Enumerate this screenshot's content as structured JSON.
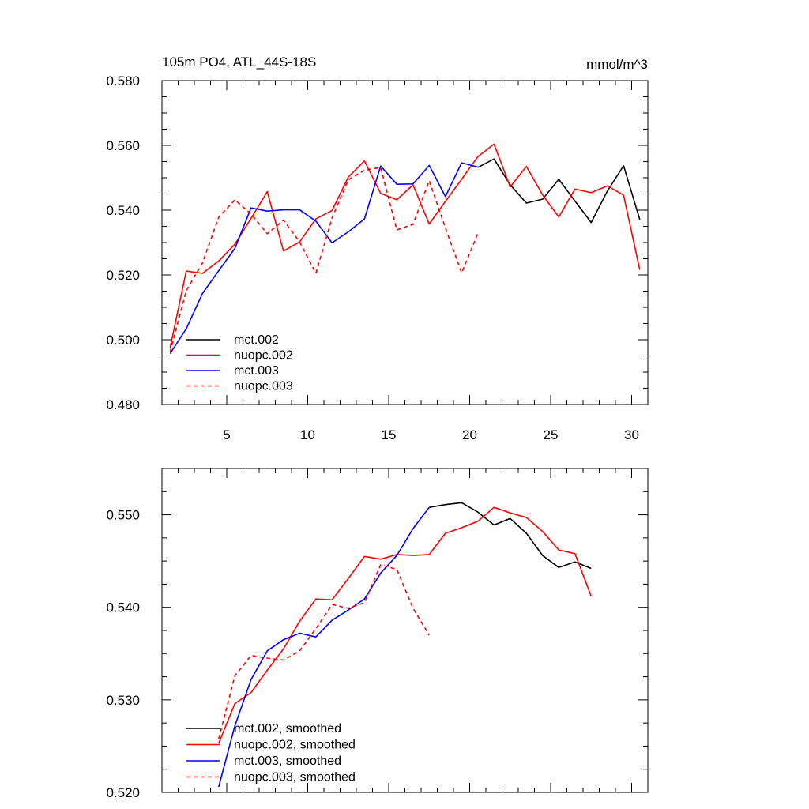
{
  "chart_data": [
    {
      "type": "line",
      "title": "105m PO4, ATL_44S-18S",
      "units": "mmol/m^3",
      "xlim": [
        1,
        31
      ],
      "ylim": [
        0.48,
        0.58
      ],
      "xticks": [
        5,
        10,
        15,
        20,
        25,
        30
      ],
      "xtick_labels": [
        "5",
        "10",
        "15",
        "20",
        "25",
        "30"
      ],
      "yticks": [
        0.48,
        0.5,
        0.52,
        0.54,
        0.56,
        0.58
      ],
      "ytick_labels": [
        "0.480",
        "0.500",
        "0.520",
        "0.540",
        "0.560",
        "0.580"
      ],
      "legend_position": "lower-left",
      "series": [
        {
          "name": "mct.002",
          "color": "#000000",
          "dash": "solid",
          "x": [
            20.5,
            21.5,
            22.5,
            23.5,
            24.5,
            25.5,
            26.5,
            27.5,
            28.5,
            29.5,
            30.5
          ],
          "y": [
            0.5532,
            0.5558,
            0.5478,
            0.5422,
            0.5434,
            0.5495,
            0.5428,
            0.5362,
            0.5459,
            0.5537,
            0.5371
          ]
        },
        {
          "name": "nuopc.002",
          "color": "#ff0000",
          "dash": "solid",
          "x": [
            1.5,
            2.5,
            3.5,
            4.5,
            5.5,
            6.5,
            7.5,
            8.5,
            9.5,
            10.5,
            11.5,
            12.5,
            13.5,
            14.5,
            15.5,
            16.5,
            17.5,
            18.5,
            19.5,
            20.5,
            21.5,
            22.5,
            23.5,
            24.5,
            25.5,
            26.5,
            27.5,
            28.5,
            29.5,
            30.5
          ],
          "y": [
            0.4975,
            0.5212,
            0.5205,
            0.5243,
            0.5295,
            0.5375,
            0.5457,
            0.5274,
            0.5302,
            0.5373,
            0.5399,
            0.5502,
            0.5552,
            0.5452,
            0.5432,
            0.5478,
            0.5357,
            0.5427,
            0.5495,
            0.5565,
            0.5604,
            0.5472,
            0.5535,
            0.5447,
            0.5379,
            0.5465,
            0.5454,
            0.5475,
            0.5446,
            0.5216
          ]
        },
        {
          "name": "mct.003",
          "color": "#0000ff",
          "dash": "solid",
          "x": [
            1.5,
            2.5,
            3.5,
            4.5,
            5.5,
            6.5,
            7.5,
            8.5,
            9.5,
            10.5,
            11.5,
            12.5,
            13.5,
            14.5,
            15.5,
            16.5,
            17.5,
            18.5,
            19.5,
            20.5
          ],
          "y": [
            0.4957,
            0.5034,
            0.5143,
            0.5213,
            0.5282,
            0.5407,
            0.5397,
            0.5401,
            0.5401,
            0.5366,
            0.5299,
            0.5333,
            0.5373,
            0.5536,
            0.548,
            0.5481,
            0.5538,
            0.5442,
            0.5546,
            0.5533
          ]
        },
        {
          "name": "nuopc.003",
          "color": "#ff0000",
          "dash": "dashed",
          "x": [
            1.5,
            2.5,
            3.5,
            4.5,
            5.5,
            6.5,
            7.5,
            8.5,
            9.5,
            10.5,
            11.5,
            12.5,
            13.5,
            14.5,
            15.5,
            16.5,
            17.5,
            18.5,
            19.5,
            20.5
          ],
          "y": [
            0.4962,
            0.5152,
            0.5237,
            0.5378,
            0.5432,
            0.5388,
            0.5327,
            0.5369,
            0.5302,
            0.5205,
            0.5376,
            0.5494,
            0.5523,
            0.5532,
            0.5339,
            0.5356,
            0.5491,
            0.5345,
            0.5206,
            0.5328
          ]
        }
      ]
    },
    {
      "type": "line",
      "xlim": [
        1,
        31
      ],
      "ylim": [
        0.52,
        0.555
      ],
      "xticks": [
        5,
        10,
        15,
        20,
        25,
        30
      ],
      "yticks": [
        0.52,
        0.53,
        0.54,
        0.55
      ],
      "ytick_labels": [
        "0.520",
        "0.530",
        "0.540",
        "0.550"
      ],
      "legend_position": "lower-left",
      "series": [
        {
          "name": "mct.002, smoothed",
          "color": "#000000",
          "dash": "solid",
          "x": [
            17.5,
            18.5,
            19.5,
            20.5,
            21.5,
            22.5,
            23.5,
            24.5,
            25.5,
            26.5,
            27.5
          ],
          "y": [
            0.5508,
            0.5511,
            0.5513,
            0.5503,
            0.5489,
            0.5496,
            0.548,
            0.5456,
            0.5443,
            0.5449,
            0.5442
          ]
        },
        {
          "name": "nuopc.002, smoothed",
          "color": "#ff0000",
          "dash": "solid",
          "x": [
            4.5,
            5.5,
            6.5,
            7.5,
            8.5,
            9.5,
            10.5,
            11.5,
            12.5,
            13.5,
            14.5,
            15.5,
            16.5,
            17.5,
            18.5,
            19.5,
            20.5,
            21.5,
            22.5,
            23.5,
            24.5,
            25.5,
            26.5,
            27.5
          ],
          "y": [
            0.5253,
            0.5296,
            0.5308,
            0.5332,
            0.5355,
            0.5385,
            0.5409,
            0.5408,
            0.5431,
            0.5455,
            0.5452,
            0.5457,
            0.5456,
            0.5457,
            0.548,
            0.5486,
            0.5493,
            0.5508,
            0.5502,
            0.5497,
            0.5482,
            0.5462,
            0.5458,
            0.5412
          ]
        },
        {
          "name": "mct.003, smoothed",
          "color": "#0000ff",
          "dash": "solid",
          "x": [
            4.5,
            5.5,
            6.5,
            7.5,
            8.5,
            9.5,
            10.5,
            11.5,
            12.5,
            13.5,
            14.5,
            15.5,
            16.5,
            17.5
          ],
          "y": [
            0.5206,
            0.5272,
            0.5322,
            0.5353,
            0.5365,
            0.5372,
            0.5368,
            0.5386,
            0.5397,
            0.5409,
            0.5437,
            0.5456,
            0.5485,
            0.5508
          ]
        },
        {
          "name": "nuopc.003, smoothed",
          "color": "#ff0000",
          "dash": "dashed",
          "x": [
            4.5,
            5.5,
            6.5,
            7.5,
            8.5,
            9.5,
            10.5,
            11.5,
            12.5,
            13.5,
            14.5,
            15.5,
            16.5,
            17.5
          ],
          "y": [
            0.5258,
            0.5326,
            0.5348,
            0.5345,
            0.5343,
            0.5353,
            0.5377,
            0.5403,
            0.5399,
            0.5405,
            0.5446,
            0.5441,
            0.5399,
            0.537
          ]
        }
      ]
    }
  ]
}
